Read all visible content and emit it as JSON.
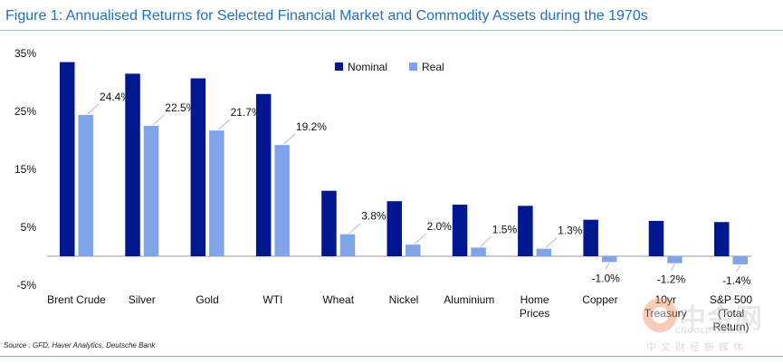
{
  "title": "Figure 1: Annualised Returns for Selected Financial Market and Commodity Assets during the 1970s",
  "source": "Source : GFD, Haver Analytics, Deutsche Bank",
  "watermark": {
    "brand": "中金网",
    "domain": "CNGOLD.COM.CN",
    "tagline": "中文财经新媒体"
  },
  "colors": {
    "nominal": "#00188f",
    "real": "#7fa4ea",
    "title": "#1f6fc2"
  },
  "chart_data": {
    "type": "bar",
    "title": "Figure 1: Annualised Returns for Selected Financial Market and Commodity Assets during the 1970s",
    "xlabel": "",
    "ylabel": "",
    "ylim": [
      -5,
      35
    ],
    "yticks": [
      35,
      25,
      15,
      5,
      -5
    ],
    "ytick_labels": [
      "35%",
      "25%",
      "15%",
      "5%",
      "-5%"
    ],
    "legend_position": "top-center",
    "categories": [
      [
        "Brent Crude"
      ],
      [
        "Silver"
      ],
      [
        "Gold"
      ],
      [
        "WTI"
      ],
      [
        "Wheat"
      ],
      [
        "Nickel"
      ],
      [
        "Aluminium"
      ],
      [
        "Home",
        "Prices"
      ],
      [
        "Copper"
      ],
      [
        "10yr",
        "Treasury"
      ],
      [
        "S&P 500",
        "(Total",
        "Return)"
      ]
    ],
    "series": [
      {
        "name": "Nominal",
        "values": [
          33.5,
          31.5,
          30.7,
          28.0,
          11.3,
          9.5,
          8.9,
          8.7,
          6.3,
          6.1,
          5.9
        ]
      },
      {
        "name": "Real",
        "values": [
          24.4,
          22.5,
          21.7,
          19.2,
          3.8,
          2.0,
          1.5,
          1.3,
          -1.0,
          -1.2,
          -1.4
        ]
      }
    ],
    "data_labels": [
      "24.4%",
      "22.5%",
      "21.7%",
      "19.2%",
      "3.8%",
      "2.0%",
      "1.5%",
      "1.3%",
      "-1.0%",
      "-1.2%",
      "-1.4%"
    ]
  }
}
